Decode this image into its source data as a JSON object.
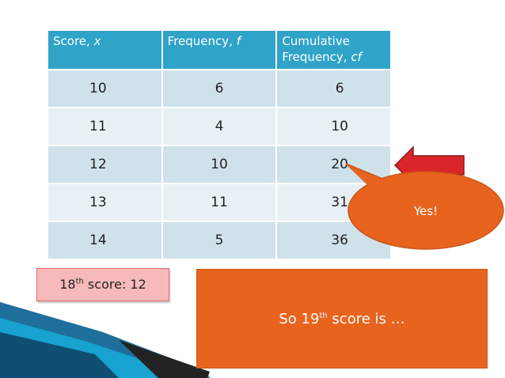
{
  "table": {
    "headers": [
      {
        "text": "Score, ",
        "var": "x"
      },
      {
        "text": "Frequency, ",
        "var": "f"
      },
      {
        "text": "Cumulative Frequency, ",
        "var": "cf"
      }
    ],
    "rows": [
      [
        "10",
        "6",
        "6"
      ],
      [
        "11",
        "4",
        "10"
      ],
      [
        "12",
        "10",
        "20"
      ],
      [
        "13",
        "11",
        "31"
      ],
      [
        "14",
        "5",
        "36"
      ]
    ]
  },
  "callout": {
    "ordinal": "18",
    "suffix": "th",
    "rest": " score: 12"
  },
  "answer_box": {
    "prefix": "So ",
    "ordinal": "19",
    "suffix": "th",
    "rest": " score is …"
  },
  "speech_bubble": {
    "text": "Yes!"
  },
  "colors": {
    "header": "#2fa3c8",
    "row_odd": "#cfe2ea",
    "row_even": "#e7f1f5",
    "arrow": "#d9252a",
    "bubble": "#e8641e",
    "callout_bg": "#f7b9b9",
    "answer_bg": "#e8641e"
  },
  "icons": [
    "left-arrow-icon",
    "speech-bubble",
    "corner-swoosh"
  ]
}
